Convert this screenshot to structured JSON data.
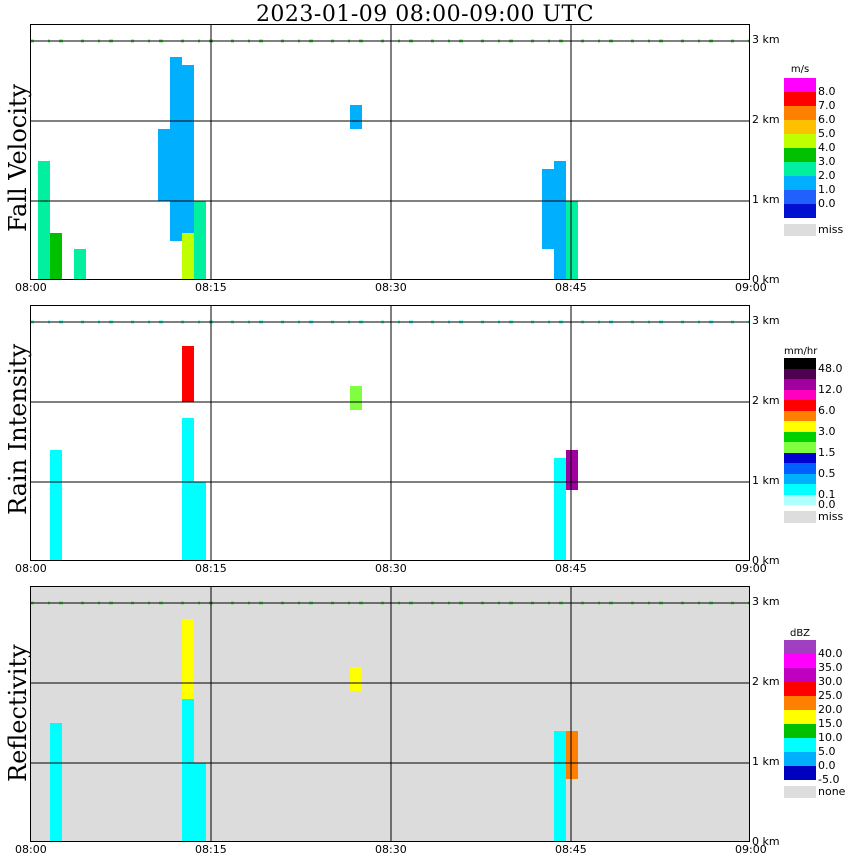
{
  "title": "2023-01-09   08:00-09:00 UTC",
  "time_ticks": [
    "08:00",
    "08:15",
    "08:30",
    "08:45",
    "09:00"
  ],
  "height_ticks": [
    "3 km",
    "2 km",
    "1 km",
    "0 km"
  ],
  "panels": [
    {
      "label": "Fall Velocity",
      "unit": "m/s",
      "legend": [
        {
          "color": "#ff00ff",
          "label": "8.0"
        },
        {
          "color": "#ff0000",
          "label": "7.0"
        },
        {
          "color": "#ff8000",
          "label": "6.0"
        },
        {
          "color": "#ffc000",
          "label": "5.0"
        },
        {
          "color": "#c0ff00",
          "label": "4.0"
        },
        {
          "color": "#00c000",
          "label": "3.0"
        },
        {
          "color": "#00f0a0",
          "label": "2.0"
        },
        {
          "color": "#00b0ff",
          "label": "1.0"
        },
        {
          "color": "#2060ff",
          "label": "0.0"
        },
        {
          "color": "#0010d0",
          "label": ""
        },
        {
          "color": "#dddddd",
          "label": "miss"
        }
      ]
    },
    {
      "label": "Rain Intensity",
      "unit": "mm/hr",
      "legend": [
        {
          "color": "#000000",
          "label": "48.0"
        },
        {
          "color": "#500050",
          "label": ""
        },
        {
          "color": "#a000a0",
          "label": "12.0"
        },
        {
          "color": "#ff00c0",
          "label": ""
        },
        {
          "color": "#ff0000",
          "label": "6.0"
        },
        {
          "color": "#ff8000",
          "label": ""
        },
        {
          "color": "#ffff00",
          "label": "3.0"
        },
        {
          "color": "#00d000",
          "label": ""
        },
        {
          "color": "#80ff40",
          "label": "1.5"
        },
        {
          "color": "#0000d0",
          "label": ""
        },
        {
          "color": "#0060ff",
          "label": "0.5"
        },
        {
          "color": "#00b0ff",
          "label": ""
        },
        {
          "color": "#00ffff",
          "label": "0.1"
        },
        {
          "color": "#b0ffff",
          "label": "0.0"
        },
        {
          "color": "#dddddd",
          "label": "miss"
        }
      ]
    },
    {
      "label": "Reflectivity",
      "unit": "dBZ",
      "legend": [
        {
          "color": "#a040c0",
          "label": "40.0"
        },
        {
          "color": "#ff00ff",
          "label": "35.0"
        },
        {
          "color": "#c000c0",
          "label": "30.0"
        },
        {
          "color": "#ff0000",
          "label": "25.0"
        },
        {
          "color": "#ff8000",
          "label": "20.0"
        },
        {
          "color": "#ffff00",
          "label": "15.0"
        },
        {
          "color": "#00c000",
          "label": "10.0"
        },
        {
          "color": "#00ffff",
          "label": "5.0"
        },
        {
          "color": "#00b0ff",
          "label": "0.0"
        },
        {
          "color": "#0000c0",
          "label": "-5.0"
        },
        {
          "color": "#dddddd",
          "label": "none"
        }
      ]
    }
  ],
  "chart_data": {
    "type": "heatmap",
    "title": "2023-01-09   08:00-09:00 UTC",
    "x_axis": {
      "unit": "UTC time",
      "range": [
        "08:00",
        "09:00"
      ],
      "ticks": [
        "08:00",
        "08:15",
        "08:30",
        "08:45",
        "09:00"
      ]
    },
    "y_axis": {
      "unit": "km",
      "range": [
        0,
        3.2
      ],
      "ticks": [
        "0 km",
        "1 km",
        "2 km",
        "3 km"
      ]
    },
    "grid": true,
    "echoes": [
      {
        "panel": "Fall Velocity",
        "cells": [
          {
            "t": "08:01",
            "h": [
              0.0,
              1.5
            ],
            "v": 2.0
          },
          {
            "t": "08:02",
            "h": [
              0.0,
              0.6
            ],
            "v": 3.0
          },
          {
            "t": "08:04",
            "h": [
              0.0,
              0.4
            ],
            "v": 2.0
          },
          {
            "t": "08:11",
            "h": [
              1.0,
              1.9
            ],
            "v": 1.0
          },
          {
            "t": "08:12",
            "h": [
              0.5,
              2.8
            ],
            "v": 1.0
          },
          {
            "t": "08:13",
            "h": [
              0.0,
              2.7
            ],
            "v": 1.0
          },
          {
            "t": "08:13",
            "h": [
              0.0,
              0.6
            ],
            "v": 4.0
          },
          {
            "t": "08:14",
            "h": [
              0.0,
              1.0
            ],
            "v": 2.0
          },
          {
            "t": "08:27",
            "h": [
              1.9,
              2.2
            ],
            "v": 1.0
          },
          {
            "t": "08:43",
            "h": [
              0.4,
              1.4
            ],
            "v": 1.0
          },
          {
            "t": "08:44",
            "h": [
              0.0,
              1.5
            ],
            "v": 1.0
          },
          {
            "t": "08:45",
            "h": [
              0.0,
              1.0
            ],
            "v": 2.0
          }
        ]
      },
      {
        "panel": "Rain Intensity",
        "cells": [
          {
            "t": "08:02",
            "h": [
              0.0,
              1.4
            ],
            "v": 0.1
          },
          {
            "t": "08:13",
            "h": [
              2.0,
              2.7
            ],
            "v": 6.0
          },
          {
            "t": "08:13",
            "h": [
              0.0,
              1.8
            ],
            "v": 0.1
          },
          {
            "t": "08:14",
            "h": [
              0.0,
              1.0
            ],
            "v": 0.1
          },
          {
            "t": "08:27",
            "h": [
              1.9,
              2.2
            ],
            "v": 1.5
          },
          {
            "t": "08:44",
            "h": [
              0.0,
              1.3
            ],
            "v": 0.1
          },
          {
            "t": "08:45",
            "h": [
              0.9,
              1.4
            ],
            "v": 12.0
          }
        ]
      },
      {
        "panel": "Reflectivity",
        "cells": [
          {
            "t": "08:02",
            "h": [
              0.0,
              1.5
            ],
            "v": 5.0
          },
          {
            "t": "08:13",
            "h": [
              1.8,
              2.8
            ],
            "v": 15.0
          },
          {
            "t": "08:13",
            "h": [
              0.0,
              1.8
            ],
            "v": 5.0
          },
          {
            "t": "08:14",
            "h": [
              0.0,
              1.0
            ],
            "v": 5.0
          },
          {
            "t": "08:27",
            "h": [
              1.9,
              2.2
            ],
            "v": 15.0
          },
          {
            "t": "08:44",
            "h": [
              0.0,
              1.4
            ],
            "v": 5.0
          },
          {
            "t": "08:45",
            "h": [
              0.8,
              1.4
            ],
            "v": 20.0
          }
        ]
      }
    ]
  }
}
